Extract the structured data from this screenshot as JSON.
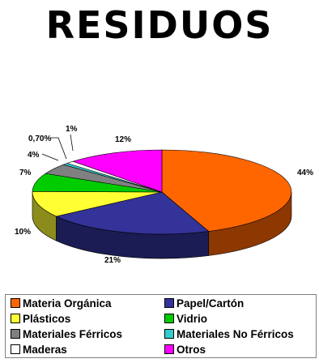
{
  "title": "RESIDUOS",
  "chart_data": {
    "type": "pie",
    "title": "RESIDUOS",
    "three_d": true,
    "legend_position": "bottom",
    "slices": [
      {
        "name": "Materia Orgánica",
        "value": 44,
        "label": "44%",
        "color": "#FF6600"
      },
      {
        "name": "Papel/Cartón",
        "value": 21,
        "label": "21%",
        "color": "#333399"
      },
      {
        "name": "Plásticos",
        "value": 10,
        "label": "10%",
        "color": "#FFFF33"
      },
      {
        "name": "Vidrio",
        "value": 7,
        "label": "7%",
        "color": "#00CC00"
      },
      {
        "name": "Materiales Férricos",
        "value": 4,
        "label": "4%",
        "color": "#808080"
      },
      {
        "name": "Materiales No Férricos",
        "value": 0.7,
        "label": "0,70%",
        "color": "#33CCCC"
      },
      {
        "name": "Maderas",
        "value": 1,
        "label": "1%",
        "color": "#FFFFFF"
      },
      {
        "name": "Otros",
        "value": 12,
        "label": "12%",
        "color": "#FF00FF"
      }
    ]
  },
  "legend": [
    {
      "label": "Materia Orgánica",
      "color": "#FF6600"
    },
    {
      "label": "Papel/Cartón",
      "color": "#333399"
    },
    {
      "label": "Plásticos",
      "color": "#FFFF33"
    },
    {
      "label": "Vidrio",
      "color": "#00CC00"
    },
    {
      "label": "Materiales Férricos",
      "color": "#808080"
    },
    {
      "label": "Materiales No Férricos",
      "color": "#33CCCC"
    },
    {
      "label": "Maderas",
      "color": "#FFFFFF"
    },
    {
      "label": "Otros",
      "color": "#FF00FF"
    }
  ]
}
